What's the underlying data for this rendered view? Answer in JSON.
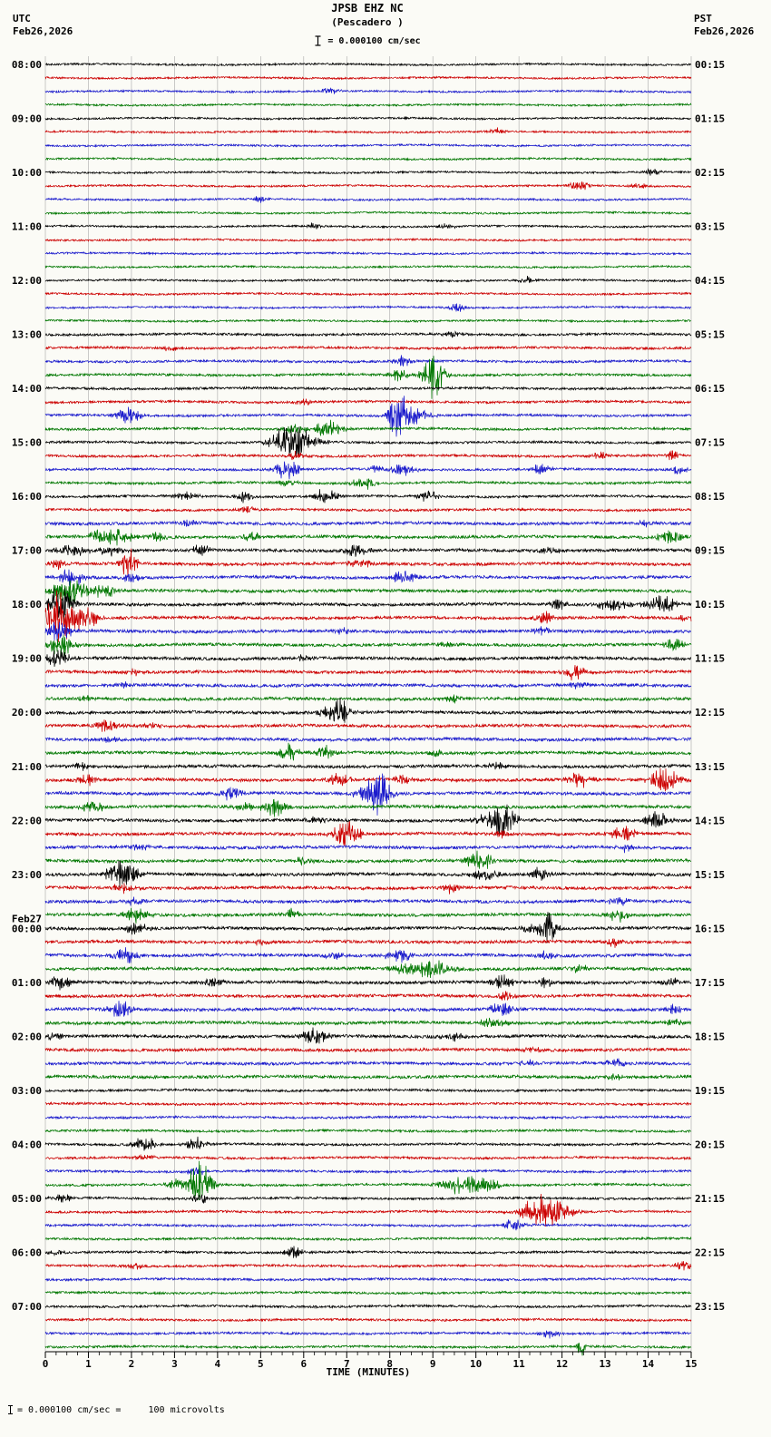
{
  "header": {
    "title": "JPSB EHZ NC",
    "subtitle": "(Pescadero )",
    "scale_label": "= 0.000100 cm/sec",
    "left_tz": "UTC",
    "left_date": "Feb26,2026",
    "right_tz": "PST",
    "right_date": "Feb26,2026"
  },
  "axis": {
    "xlabel": "TIME (MINUTES)",
    "ticks": [
      "0",
      "1",
      "2",
      "3",
      "4",
      "5",
      "6",
      "7",
      "8",
      "9",
      "10",
      "11",
      "12",
      "13",
      "14",
      "15"
    ]
  },
  "footer": {
    "note": "= 0.000100 cm/sec =     100 microvolts"
  },
  "chart_data": {
    "type": "seismogram",
    "station": "JPSB EHZ NC",
    "station_name": "(Pescadero )",
    "rows": 96,
    "minutes_per_row": 15,
    "colors": [
      "#000000",
      "#cc0000",
      "#1a1acc",
      "#007700"
    ],
    "grid_color": "#a8a8a8",
    "left_labels": [
      {
        "row": 0,
        "text": "08:00"
      },
      {
        "row": 4,
        "text": "09:00"
      },
      {
        "row": 8,
        "text": "10:00"
      },
      {
        "row": 12,
        "text": "11:00"
      },
      {
        "row": 16,
        "text": "12:00"
      },
      {
        "row": 20,
        "text": "13:00"
      },
      {
        "row": 24,
        "text": "14:00"
      },
      {
        "row": 28,
        "text": "15:00"
      },
      {
        "row": 32,
        "text": "16:00"
      },
      {
        "row": 36,
        "text": "17:00"
      },
      {
        "row": 40,
        "text": "18:00"
      },
      {
        "row": 44,
        "text": "19:00"
      },
      {
        "row": 48,
        "text": "20:00"
      },
      {
        "row": 52,
        "text": "21:00"
      },
      {
        "row": 56,
        "text": "22:00"
      },
      {
        "row": 60,
        "text": "23:00"
      },
      {
        "row": 64,
        "text": "00:00",
        "date": "Feb27"
      },
      {
        "row": 68,
        "text": "01:00"
      },
      {
        "row": 72,
        "text": "02:00"
      },
      {
        "row": 76,
        "text": "03:00"
      },
      {
        "row": 80,
        "text": "04:00"
      },
      {
        "row": 84,
        "text": "05:00"
      },
      {
        "row": 88,
        "text": "06:00"
      },
      {
        "row": 92,
        "text": "07:00"
      }
    ],
    "right_labels": [
      {
        "row": 0,
        "text": "00:15"
      },
      {
        "row": 4,
        "text": "01:15"
      },
      {
        "row": 8,
        "text": "02:15"
      },
      {
        "row": 12,
        "text": "03:15"
      },
      {
        "row": 16,
        "text": "04:15"
      },
      {
        "row": 20,
        "text": "05:15"
      },
      {
        "row": 24,
        "text": "06:15"
      },
      {
        "row": 28,
        "text": "07:15"
      },
      {
        "row": 32,
        "text": "08:15"
      },
      {
        "row": 36,
        "text": "09:15"
      },
      {
        "row": 40,
        "text": "10:15"
      },
      {
        "row": 44,
        "text": "11:15"
      },
      {
        "row": 48,
        "text": "12:15"
      },
      {
        "row": 52,
        "text": "13:15"
      },
      {
        "row": 56,
        "text": "14:15"
      },
      {
        "row": 60,
        "text": "15:15"
      },
      {
        "row": 64,
        "text": "16:15"
      },
      {
        "row": 68,
        "text": "17:15"
      },
      {
        "row": 72,
        "text": "18:15"
      },
      {
        "row": 76,
        "text": "19:15"
      },
      {
        "row": 80,
        "text": "20:15"
      },
      {
        "row": 84,
        "text": "21:15"
      },
      {
        "row": 88,
        "text": "22:15"
      },
      {
        "row": 92,
        "text": "23:15"
      }
    ],
    "noise_profile": [
      {
        "from": 0,
        "to": 19,
        "scale": 1.0
      },
      {
        "from": 20,
        "to": 33,
        "scale": 1.25
      },
      {
        "from": 34,
        "to": 75,
        "scale": 1.6
      },
      {
        "from": 76,
        "to": 95,
        "scale": 1.2
      }
    ],
    "event_fields": [
      "row",
      "minute",
      "amplitude_px",
      "width_min"
    ],
    "events": [
      [
        2,
        6.6,
        3,
        0.3
      ],
      [
        5,
        10.5,
        3,
        0.3
      ],
      [
        8,
        14.1,
        3,
        0.3
      ],
      [
        9,
        12.4,
        5,
        0.35
      ],
      [
        9,
        13.8,
        3,
        0.3
      ],
      [
        10,
        5.0,
        3,
        0.3
      ],
      [
        12,
        6.3,
        3,
        0.3
      ],
      [
        12,
        9.3,
        3,
        0.3
      ],
      [
        16,
        11.2,
        3,
        0.3
      ],
      [
        18,
        9.6,
        6,
        0.25
      ],
      [
        20,
        9.5,
        3,
        0.3
      ],
      [
        21,
        2.9,
        3,
        0.3
      ],
      [
        22,
        8.3,
        5,
        0.3
      ],
      [
        23,
        9.0,
        22,
        0.35
      ],
      [
        23,
        8.2,
        6,
        0.3
      ],
      [
        25,
        6.0,
        3,
        0.3
      ],
      [
        26,
        8.2,
        24,
        0.3
      ],
      [
        26,
        8.6,
        8,
        0.5
      ],
      [
        26,
        1.9,
        8,
        0.4
      ],
      [
        27,
        6.6,
        8,
        0.5
      ],
      [
        27,
        5.8,
        5,
        0.4
      ],
      [
        28,
        5.8,
        14,
        0.7
      ],
      [
        28,
        5.5,
        8,
        0.4
      ],
      [
        29,
        5.8,
        4,
        0.3
      ],
      [
        29,
        12.9,
        4,
        0.3
      ],
      [
        29,
        14.6,
        5,
        0.3
      ],
      [
        30,
        5.6,
        9,
        0.4
      ],
      [
        30,
        7.7,
        4,
        0.3
      ],
      [
        30,
        8.3,
        6,
        0.4
      ],
      [
        30,
        11.5,
        6,
        0.3
      ],
      [
        30,
        14.7,
        5,
        0.3
      ],
      [
        31,
        7.4,
        6,
        0.4
      ],
      [
        31,
        5.6,
        4,
        0.3
      ],
      [
        32,
        3.3,
        4,
        0.4
      ],
      [
        32,
        4.6,
        5,
        0.3
      ],
      [
        32,
        6.5,
        7,
        0.4
      ],
      [
        32,
        8.9,
        6,
        0.3
      ],
      [
        33,
        4.7,
        3,
        0.3
      ],
      [
        34,
        3.3,
        4,
        0.3
      ],
      [
        34,
        13.9,
        4,
        0.3
      ],
      [
        35,
        1.7,
        9,
        0.5
      ],
      [
        35,
        1.2,
        6,
        0.3
      ],
      [
        35,
        2.6,
        5,
        0.3
      ],
      [
        35,
        4.8,
        5,
        0.3
      ],
      [
        35,
        14.5,
        7,
        0.4
      ],
      [
        36,
        0.6,
        6,
        0.5
      ],
      [
        36,
        1.5,
        5,
        0.4
      ],
      [
        36,
        3.6,
        5,
        0.3
      ],
      [
        36,
        7.2,
        7,
        0.4
      ],
      [
        36,
        11.7,
        4,
        0.3
      ],
      [
        37,
        1.95,
        16,
        0.25
      ],
      [
        37,
        7.3,
        5,
        0.4
      ],
      [
        37,
        0.3,
        5,
        0.3
      ],
      [
        38,
        0.6,
        9,
        0.4
      ],
      [
        38,
        8.3,
        7,
        0.4
      ],
      [
        38,
        2.0,
        4,
        0.3
      ],
      [
        39,
        0.6,
        13,
        0.6
      ],
      [
        39,
        1.4,
        6,
        0.4
      ],
      [
        40,
        0.35,
        18,
        0.4
      ],
      [
        40,
        13.2,
        6,
        0.5
      ],
      [
        40,
        14.3,
        9,
        0.5
      ],
      [
        40,
        11.9,
        5,
        0.3
      ],
      [
        41,
        0.3,
        28,
        0.45
      ],
      [
        41,
        0.9,
        12,
        0.4
      ],
      [
        41,
        11.6,
        6,
        0.3
      ],
      [
        41,
        14.9,
        4,
        0.3
      ],
      [
        42,
        0.3,
        10,
        0.4
      ],
      [
        42,
        11.5,
        4,
        0.3
      ],
      [
        42,
        6.9,
        3,
        0.3
      ],
      [
        43,
        0.35,
        12,
        0.4
      ],
      [
        43,
        14.6,
        6,
        0.3
      ],
      [
        43,
        9.3,
        3,
        0.3
      ],
      [
        44,
        0.3,
        9,
        0.4
      ],
      [
        44,
        6.0,
        3,
        0.3
      ],
      [
        45,
        12.3,
        7,
        0.35
      ],
      [
        45,
        2.1,
        3,
        0.3
      ],
      [
        46,
        1.8,
        3,
        0.3
      ],
      [
        46,
        12.4,
        3,
        0.3
      ],
      [
        47,
        0.9,
        4,
        0.3
      ],
      [
        47,
        9.5,
        3,
        0.3
      ],
      [
        48,
        6.85,
        14,
        0.3
      ],
      [
        48,
        6.5,
        5,
        0.3
      ],
      [
        49,
        1.4,
        7,
        0.4
      ],
      [
        49,
        2.5,
        4,
        0.3
      ],
      [
        50,
        1.5,
        3,
        0.3
      ],
      [
        51,
        5.65,
        8,
        0.3
      ],
      [
        51,
        6.5,
        7,
        0.35
      ],
      [
        51,
        9.0,
        4,
        0.3
      ],
      [
        52,
        0.9,
        4,
        0.3
      ],
      [
        52,
        10.5,
        3,
        0.3
      ],
      [
        53,
        0.95,
        6,
        0.3
      ],
      [
        53,
        6.8,
        7,
        0.4
      ],
      [
        53,
        12.4,
        7,
        0.4
      ],
      [
        53,
        14.4,
        12,
        0.5
      ],
      [
        53,
        8.3,
        4,
        0.3
      ],
      [
        54,
        7.75,
        22,
        0.35
      ],
      [
        54,
        4.3,
        6,
        0.4
      ],
      [
        54,
        7.4,
        6,
        0.4
      ],
      [
        55,
        1.1,
        6,
        0.4
      ],
      [
        55,
        5.3,
        9,
        0.4
      ],
      [
        55,
        4.6,
        4,
        0.3
      ],
      [
        56,
        10.6,
        18,
        0.4
      ],
      [
        56,
        10.2,
        6,
        0.4
      ],
      [
        56,
        14.2,
        9,
        0.4
      ],
      [
        56,
        6.3,
        4,
        0.3
      ],
      [
        57,
        7.0,
        13,
        0.45
      ],
      [
        57,
        13.4,
        7,
        0.4
      ],
      [
        57,
        10.6,
        4,
        0.3
      ],
      [
        58,
        13.5,
        4,
        0.3
      ],
      [
        58,
        2.2,
        3,
        0.3
      ],
      [
        59,
        10.1,
        10,
        0.45
      ],
      [
        59,
        6.0,
        4,
        0.3
      ],
      [
        60,
        1.8,
        13,
        0.5
      ],
      [
        60,
        10.2,
        7,
        0.4
      ],
      [
        60,
        11.5,
        6,
        0.3
      ],
      [
        61,
        1.8,
        5,
        0.4
      ],
      [
        61,
        9.4,
        5,
        0.3
      ],
      [
        62,
        13.3,
        5,
        0.3
      ],
      [
        62,
        2.1,
        4,
        0.3
      ],
      [
        63,
        2.1,
        7,
        0.4
      ],
      [
        63,
        5.7,
        5,
        0.3
      ],
      [
        63,
        13.3,
        6,
        0.35
      ],
      [
        64,
        2.1,
        6,
        0.4
      ],
      [
        64,
        11.65,
        17,
        0.3
      ],
      [
        64,
        11.2,
        5,
        0.3
      ],
      [
        65,
        13.2,
        4,
        0.3
      ],
      [
        65,
        5.0,
        3,
        0.3
      ],
      [
        66,
        1.85,
        9,
        0.4
      ],
      [
        66,
        8.2,
        7,
        0.4
      ],
      [
        66,
        6.7,
        4,
        0.3
      ],
      [
        66,
        11.6,
        4,
        0.3
      ],
      [
        67,
        9.0,
        9,
        0.6
      ],
      [
        67,
        8.3,
        5,
        0.4
      ],
      [
        67,
        12.4,
        4,
        0.3
      ],
      [
        68,
        0.35,
        7,
        0.4
      ],
      [
        68,
        3.9,
        5,
        0.35
      ],
      [
        68,
        10.6,
        7,
        0.4
      ],
      [
        68,
        11.6,
        5,
        0.3
      ],
      [
        68,
        14.5,
        4,
        0.3
      ],
      [
        69,
        10.7,
        4,
        0.3
      ],
      [
        70,
        1.75,
        9,
        0.4
      ],
      [
        70,
        10.6,
        7,
        0.4
      ],
      [
        70,
        14.6,
        4,
        0.3
      ],
      [
        71,
        10.4,
        5,
        0.4
      ],
      [
        71,
        14.6,
        4,
        0.3
      ],
      [
        72,
        6.25,
        9,
        0.4
      ],
      [
        72,
        0.2,
        4,
        0.3
      ],
      [
        72,
        9.5,
        4,
        0.4
      ],
      [
        73,
        11.3,
        3,
        0.3
      ],
      [
        74,
        13.3,
        5,
        0.35
      ],
      [
        74,
        11.2,
        3,
        0.3
      ],
      [
        75,
        13.2,
        3,
        0.3
      ],
      [
        80,
        2.3,
        7,
        0.4
      ],
      [
        80,
        3.5,
        6,
        0.35
      ],
      [
        81,
        2.3,
        3,
        0.3
      ],
      [
        82,
        3.5,
        4,
        0.3
      ],
      [
        83,
        3.6,
        22,
        0.4
      ],
      [
        83,
        3.0,
        5,
        0.3
      ],
      [
        83,
        9.7,
        9,
        0.7
      ],
      [
        83,
        10.3,
        6,
        0.4
      ],
      [
        84,
        3.6,
        5,
        0.3
      ],
      [
        84,
        0.4,
        4,
        0.3
      ],
      [
        85,
        11.7,
        13,
        0.7
      ],
      [
        85,
        11.3,
        8,
        0.4
      ],
      [
        86,
        10.85,
        6,
        0.35
      ],
      [
        88,
        5.75,
        6,
        0.3
      ],
      [
        88,
        0.3,
        3,
        0.3
      ],
      [
        89,
        14.85,
        5,
        0.3
      ],
      [
        89,
        2.1,
        3,
        0.3
      ],
      [
        94,
        11.7,
        4,
        0.3
      ],
      [
        95,
        12.45,
        12,
        0.12
      ]
    ]
  }
}
